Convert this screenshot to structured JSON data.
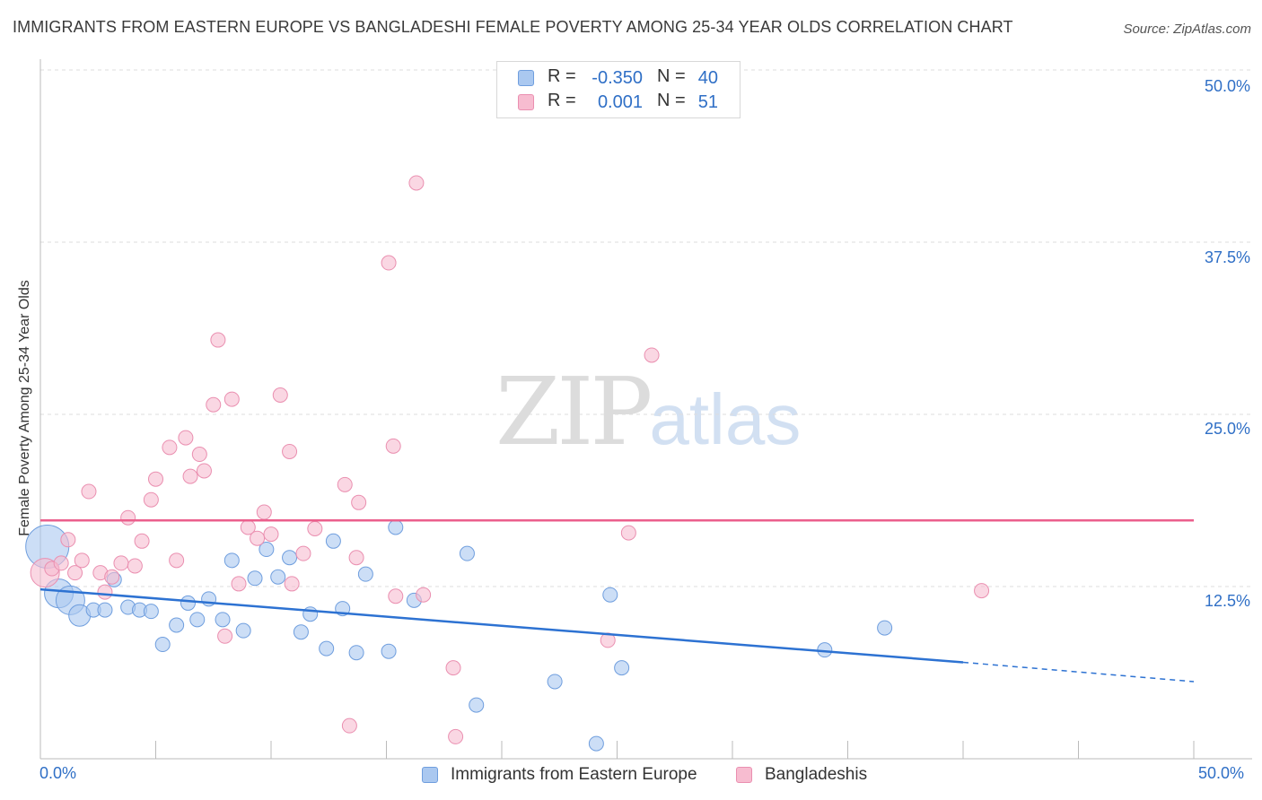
{
  "title": "IMMIGRANTS FROM EASTERN EUROPE VS BANGLADESHI FEMALE POVERTY AMONG 25-34 YEAR OLDS CORRELATION CHART",
  "source": "Source: ZipAtlas.com",
  "watermark": {
    "zip": "ZIP",
    "atlas": "atlas"
  },
  "colors": {
    "blue_fill": "#aac8f0",
    "blue_stroke": "#6f9ede",
    "blue_line": "#2d72d2",
    "pink_fill": "#f7bcd0",
    "pink_stroke": "#ea8fb0",
    "pink_line": "#eb5f8c",
    "grid": "#dddddd",
    "axis": "#bbbbbb",
    "accent_text": "#2f6fc6"
  },
  "legend_top": {
    "rows": [
      {
        "series": "blue",
        "r_label": "R =",
        "r_value": "-0.350",
        "n_label": "N =",
        "n_value": "40"
      },
      {
        "series": "pink",
        "r_label": "R =",
        "r_value": "0.001",
        "n_label": "N =",
        "n_value": "51"
      }
    ]
  },
  "legend_bottom": [
    {
      "series": "blue",
      "label": "Immigrants from Eastern Europe"
    },
    {
      "series": "pink",
      "label": "Bangladeshis"
    }
  ],
  "chart_data": {
    "type": "scatter",
    "title": "IMMIGRANTS FROM EASTERN EUROPE VS BANGLADESHI FEMALE POVERTY AMONG 25-34 YEAR OLDS CORRELATION CHART",
    "xlabel": "",
    "ylabel": "Female Poverty Among 25-34 Year Olds",
    "xlim": [
      0,
      50
    ],
    "ylim": [
      0,
      50
    ],
    "y_ticks": [
      12.5,
      25.0,
      37.5,
      50.0
    ],
    "y_tick_labels": [
      "12.5%",
      "25.0%",
      "37.5%",
      "50.0%"
    ],
    "x_tick_labels": [
      "0.0%",
      "50.0%"
    ],
    "grid": true,
    "series": [
      {
        "name": "Immigrants from Eastern Europe",
        "color": "blue",
        "r": -0.35,
        "n": 40,
        "trend": {
          "x0": 0,
          "y0": 12.3,
          "x1": 40,
          "y1": 7.0,
          "dashed_to_x": 50,
          "dashed_to_y": 5.6
        },
        "points": [
          [
            0.3,
            15.4,
            3
          ],
          [
            0.8,
            12.0,
            2
          ],
          [
            1.3,
            11.5,
            2
          ],
          [
            1.7,
            10.4,
            1.5
          ],
          [
            2.3,
            10.8,
            1
          ],
          [
            2.8,
            10.8,
            1
          ],
          [
            3.2,
            13.0,
            1
          ],
          [
            3.8,
            11.0,
            1
          ],
          [
            4.3,
            10.8,
            1
          ],
          [
            4.8,
            10.7,
            1
          ],
          [
            5.3,
            8.3,
            1
          ],
          [
            5.9,
            9.7,
            1
          ],
          [
            6.4,
            11.3,
            1
          ],
          [
            6.8,
            10.1,
            1
          ],
          [
            7.3,
            11.6,
            1
          ],
          [
            7.9,
            10.1,
            1
          ],
          [
            8.3,
            14.4,
            1
          ],
          [
            8.8,
            9.3,
            1
          ],
          [
            9.3,
            13.1,
            1
          ],
          [
            9.8,
            15.2,
            1
          ],
          [
            10.3,
            13.2,
            1
          ],
          [
            10.8,
            14.6,
            1
          ],
          [
            11.3,
            9.2,
            1
          ],
          [
            11.7,
            10.5,
            1
          ],
          [
            12.4,
            8.0,
            1
          ],
          [
            12.7,
            15.8,
            1
          ],
          [
            13.1,
            10.9,
            1
          ],
          [
            13.7,
            7.7,
            1
          ],
          [
            14.1,
            13.4,
            1
          ],
          [
            15.1,
            7.8,
            1
          ],
          [
            15.4,
            16.8,
            1
          ],
          [
            16.2,
            11.5,
            1
          ],
          [
            18.5,
            14.9,
            1
          ],
          [
            18.9,
            3.9,
            1
          ],
          [
            22.3,
            5.6,
            1
          ],
          [
            24.1,
            1.1,
            1
          ],
          [
            24.7,
            11.9,
            1
          ],
          [
            25.2,
            6.6,
            1
          ],
          [
            34.0,
            7.9,
            1
          ],
          [
            36.6,
            9.5,
            1
          ]
        ]
      },
      {
        "name": "Bangladeshis",
        "color": "pink",
        "r": 0.001,
        "n": 51,
        "trend": {
          "x0": 0,
          "y0": 17.3,
          "x1": 50,
          "y1": 17.3
        },
        "points": [
          [
            0.2,
            13.5,
            2
          ],
          [
            0.5,
            13.8,
            1
          ],
          [
            0.9,
            14.2,
            1
          ],
          [
            1.2,
            15.9,
            1
          ],
          [
            1.5,
            13.5,
            1
          ],
          [
            1.8,
            14.4,
            1
          ],
          [
            2.1,
            19.4,
            1
          ],
          [
            2.6,
            13.5,
            1
          ],
          [
            2.8,
            12.1,
            1
          ],
          [
            3.1,
            13.2,
            1
          ],
          [
            3.5,
            14.2,
            1
          ],
          [
            3.8,
            17.5,
            1
          ],
          [
            4.1,
            14.0,
            1
          ],
          [
            4.4,
            15.8,
            1
          ],
          [
            4.8,
            18.8,
            1
          ],
          [
            5.0,
            20.3,
            1
          ],
          [
            5.6,
            22.6,
            1
          ],
          [
            5.9,
            14.4,
            1
          ],
          [
            6.3,
            23.3,
            1
          ],
          [
            6.5,
            20.5,
            1
          ],
          [
            6.9,
            22.1,
            1
          ],
          [
            7.1,
            20.9,
            1
          ],
          [
            7.5,
            25.7,
            1
          ],
          [
            7.7,
            30.4,
            1
          ],
          [
            8.0,
            8.9,
            1
          ],
          [
            8.3,
            26.1,
            1
          ],
          [
            8.6,
            12.7,
            1
          ],
          [
            9.0,
            16.8,
            1
          ],
          [
            9.4,
            16.0,
            1
          ],
          [
            9.7,
            17.9,
            1
          ],
          [
            10.0,
            16.3,
            1
          ],
          [
            10.4,
            26.4,
            1
          ],
          [
            10.8,
            22.3,
            1
          ],
          [
            10.9,
            12.7,
            1
          ],
          [
            11.4,
            14.9,
            1
          ],
          [
            11.9,
            16.7,
            1
          ],
          [
            13.2,
            19.9,
            1
          ],
          [
            13.4,
            2.4,
            1
          ],
          [
            13.7,
            14.6,
            1
          ],
          [
            13.8,
            18.6,
            1
          ],
          [
            15.1,
            36.0,
            1
          ],
          [
            15.3,
            22.7,
            1
          ],
          [
            15.4,
            11.8,
            1
          ],
          [
            16.3,
            41.8,
            1
          ],
          [
            16.6,
            11.9,
            1
          ],
          [
            17.9,
            6.6,
            1
          ],
          [
            18.0,
            1.6,
            1
          ],
          [
            24.6,
            8.6,
            1
          ],
          [
            25.5,
            16.4,
            1
          ],
          [
            26.5,
            29.3,
            1
          ],
          [
            40.8,
            12.2,
            1
          ]
        ]
      }
    ]
  }
}
